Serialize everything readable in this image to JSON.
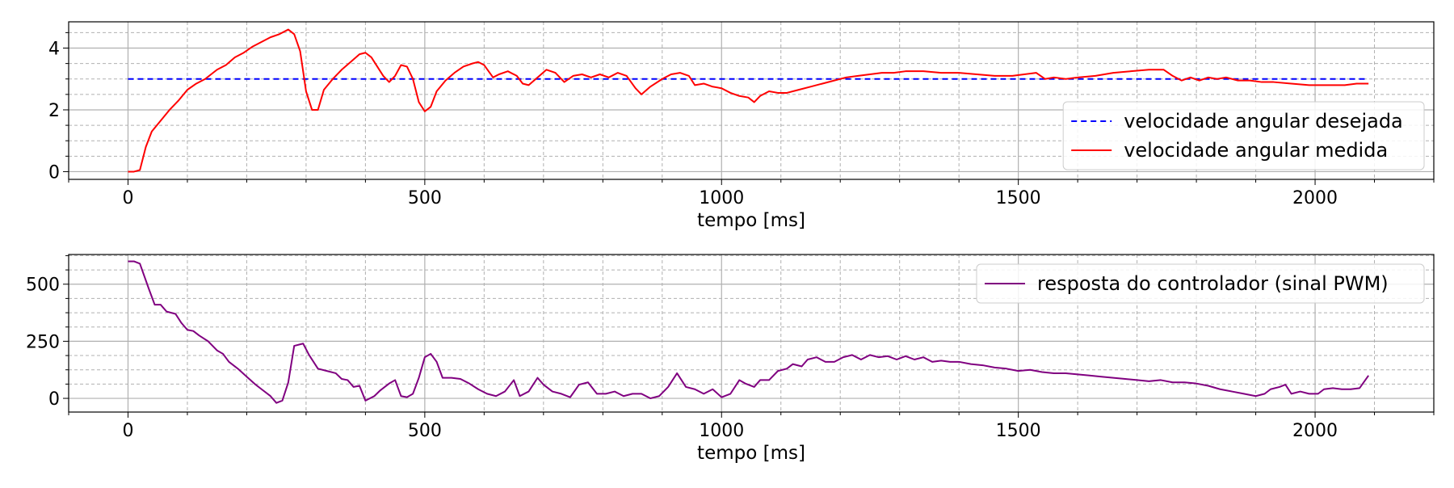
{
  "chart_data": [
    {
      "type": "line",
      "title": "",
      "xlabel": "tempo [ms]",
      "ylabel": "",
      "xlim": [
        -100,
        2200
      ],
      "ylim": [
        -0.25,
        4.85
      ],
      "xticks": [
        0,
        500,
        1000,
        1500,
        2000
      ],
      "yticks": [
        0,
        2,
        4
      ],
      "grid": true,
      "legend_position": "lower-right",
      "series": [
        {
          "name": "velocidade angular desejada",
          "color": "#0000ff",
          "style": "dashed",
          "points": [
            [
              0,
              3.0
            ],
            [
              2090,
              3.0
            ]
          ]
        },
        {
          "name": "velocidade angular medida",
          "color": "#ff0000",
          "style": "solid",
          "points": [
            [
              0,
              0
            ],
            [
              10,
              0
            ],
            [
              20,
              0.05
            ],
            [
              30,
              0.8
            ],
            [
              40,
              1.3
            ],
            [
              55,
              1.65
            ],
            [
              70,
              2.0
            ],
            [
              85,
              2.3
            ],
            [
              100,
              2.65
            ],
            [
              115,
              2.85
            ],
            [
              130,
              3.0
            ],
            [
              150,
              3.3
            ],
            [
              165,
              3.45
            ],
            [
              180,
              3.7
            ],
            [
              195,
              3.85
            ],
            [
              210,
              4.05
            ],
            [
              225,
              4.2
            ],
            [
              240,
              4.35
            ],
            [
              255,
              4.45
            ],
            [
              270,
              4.6
            ],
            [
              280,
              4.45
            ],
            [
              290,
              3.9
            ],
            [
              300,
              2.6
            ],
            [
              310,
              2.0
            ],
            [
              320,
              2.0
            ],
            [
              330,
              2.65
            ],
            [
              345,
              3.0
            ],
            [
              360,
              3.3
            ],
            [
              375,
              3.55
            ],
            [
              390,
              3.8
            ],
            [
              400,
              3.85
            ],
            [
              410,
              3.7
            ],
            [
              420,
              3.4
            ],
            [
              430,
              3.1
            ],
            [
              440,
              2.9
            ],
            [
              450,
              3.1
            ],
            [
              460,
              3.45
            ],
            [
              470,
              3.4
            ],
            [
              480,
              3.0
            ],
            [
              490,
              2.25
            ],
            [
              500,
              1.95
            ],
            [
              510,
              2.1
            ],
            [
              520,
              2.6
            ],
            [
              535,
              2.95
            ],
            [
              550,
              3.2
            ],
            [
              565,
              3.4
            ],
            [
              580,
              3.5
            ],
            [
              590,
              3.55
            ],
            [
              600,
              3.45
            ],
            [
              615,
              3.05
            ],
            [
              625,
              3.15
            ],
            [
              640,
              3.25
            ],
            [
              655,
              3.1
            ],
            [
              665,
              2.85
            ],
            [
              675,
              2.8
            ],
            [
              690,
              3.05
            ],
            [
              705,
              3.3
            ],
            [
              720,
              3.2
            ],
            [
              735,
              2.9
            ],
            [
              750,
              3.1
            ],
            [
              765,
              3.15
            ],
            [
              780,
              3.05
            ],
            [
              795,
              3.15
            ],
            [
              810,
              3.05
            ],
            [
              825,
              3.2
            ],
            [
              840,
              3.1
            ],
            [
              855,
              2.7
            ],
            [
              865,
              2.5
            ],
            [
              880,
              2.75
            ],
            [
              900,
              3.0
            ],
            [
              915,
              3.15
            ],
            [
              930,
              3.2
            ],
            [
              945,
              3.1
            ],
            [
              955,
              2.8
            ],
            [
              970,
              2.85
            ],
            [
              985,
              2.75
            ],
            [
              1000,
              2.7
            ],
            [
              1015,
              2.55
            ],
            [
              1030,
              2.45
            ],
            [
              1045,
              2.4
            ],
            [
              1055,
              2.25
            ],
            [
              1065,
              2.45
            ],
            [
              1080,
              2.6
            ],
            [
              1095,
              2.55
            ],
            [
              1110,
              2.55
            ],
            [
              1130,
              2.65
            ],
            [
              1150,
              2.75
            ],
            [
              1170,
              2.85
            ],
            [
              1190,
              2.95
            ],
            [
              1210,
              3.05
            ],
            [
              1230,
              3.1
            ],
            [
              1250,
              3.15
            ],
            [
              1270,
              3.2
            ],
            [
              1290,
              3.2
            ],
            [
              1310,
              3.25
            ],
            [
              1340,
              3.25
            ],
            [
              1370,
              3.2
            ],
            [
              1400,
              3.2
            ],
            [
              1430,
              3.15
            ],
            [
              1460,
              3.1
            ],
            [
              1490,
              3.1
            ],
            [
              1510,
              3.15
            ],
            [
              1530,
              3.2
            ],
            [
              1545,
              3.0
            ],
            [
              1560,
              3.05
            ],
            [
              1580,
              3.0
            ],
            [
              1600,
              3.05
            ],
            [
              1630,
              3.1
            ],
            [
              1660,
              3.2
            ],
            [
              1690,
              3.25
            ],
            [
              1720,
              3.3
            ],
            [
              1745,
              3.3
            ],
            [
              1760,
              3.1
            ],
            [
              1775,
              2.95
            ],
            [
              1790,
              3.05
            ],
            [
              1805,
              2.95
            ],
            [
              1820,
              3.05
            ],
            [
              1835,
              3.0
            ],
            [
              1850,
              3.05
            ],
            [
              1870,
              2.95
            ],
            [
              1890,
              2.95
            ],
            [
              1910,
              2.9
            ],
            [
              1930,
              2.9
            ],
            [
              1960,
              2.85
            ],
            [
              1990,
              2.8
            ],
            [
              2020,
              2.8
            ],
            [
              2050,
              2.8
            ],
            [
              2070,
              2.85
            ],
            [
              2090,
              2.85
            ]
          ]
        }
      ]
    },
    {
      "type": "line",
      "title": "",
      "xlabel": "tempo [ms]",
      "ylabel": "",
      "xlim": [
        -100,
        2200
      ],
      "ylim": [
        -60,
        630
      ],
      "xticks": [
        0,
        500,
        1000,
        1500,
        2000
      ],
      "yticks": [
        0,
        250,
        500
      ],
      "grid": true,
      "legend_position": "upper-right",
      "series": [
        {
          "name": "resposta do controlador (sinal PWM)",
          "color": "#800080",
          "style": "solid",
          "points": [
            [
              0,
              600
            ],
            [
              10,
              600
            ],
            [
              20,
              590
            ],
            [
              35,
              480
            ],
            [
              45,
              410
            ],
            [
              55,
              410
            ],
            [
              65,
              380
            ],
            [
              80,
              370
            ],
            [
              90,
              330
            ],
            [
              100,
              300
            ],
            [
              110,
              295
            ],
            [
              120,
              275
            ],
            [
              135,
              250
            ],
            [
              150,
              210
            ],
            [
              160,
              195
            ],
            [
              170,
              160
            ],
            [
              185,
              130
            ],
            [
              200,
              95
            ],
            [
              215,
              60
            ],
            [
              225,
              40
            ],
            [
              240,
              10
            ],
            [
              250,
              -20
            ],
            [
              260,
              -10
            ],
            [
              270,
              70
            ],
            [
              280,
              230
            ],
            [
              295,
              240
            ],
            [
              305,
              190
            ],
            [
              320,
              130
            ],
            [
              335,
              120
            ],
            [
              350,
              110
            ],
            [
              360,
              85
            ],
            [
              370,
              80
            ],
            [
              380,
              50
            ],
            [
              390,
              55
            ],
            [
              400,
              -10
            ],
            [
              415,
              10
            ],
            [
              425,
              35
            ],
            [
              440,
              65
            ],
            [
              450,
              80
            ],
            [
              460,
              10
            ],
            [
              470,
              5
            ],
            [
              480,
              20
            ],
            [
              490,
              90
            ],
            [
              500,
              180
            ],
            [
              510,
              195
            ],
            [
              520,
              160
            ],
            [
              530,
              90
            ],
            [
              545,
              90
            ],
            [
              560,
              85
            ],
            [
              575,
              65
            ],
            [
              590,
              40
            ],
            [
              605,
              20
            ],
            [
              620,
              10
            ],
            [
              635,
              30
            ],
            [
              650,
              80
            ],
            [
              660,
              10
            ],
            [
              675,
              30
            ],
            [
              690,
              90
            ],
            [
              700,
              60
            ],
            [
              715,
              30
            ],
            [
              730,
              20
            ],
            [
              745,
              5
            ],
            [
              760,
              60
            ],
            [
              775,
              70
            ],
            [
              790,
              20
            ],
            [
              805,
              20
            ],
            [
              820,
              30
            ],
            [
              835,
              10
            ],
            [
              850,
              20
            ],
            [
              865,
              20
            ],
            [
              880,
              0
            ],
            [
              895,
              10
            ],
            [
              910,
              50
            ],
            [
              925,
              110
            ],
            [
              940,
              50
            ],
            [
              955,
              40
            ],
            [
              970,
              20
            ],
            [
              985,
              40
            ],
            [
              1000,
              5
            ],
            [
              1015,
              20
            ],
            [
              1030,
              80
            ],
            [
              1040,
              65
            ],
            [
              1055,
              50
            ],
            [
              1065,
              80
            ],
            [
              1080,
              80
            ],
            [
              1095,
              120
            ],
            [
              1110,
              130
            ],
            [
              1120,
              150
            ],
            [
              1135,
              140
            ],
            [
              1145,
              170
            ],
            [
              1160,
              180
            ],
            [
              1175,
              160
            ],
            [
              1190,
              160
            ],
            [
              1205,
              180
            ],
            [
              1220,
              190
            ],
            [
              1235,
              170
            ],
            [
              1250,
              190
            ],
            [
              1265,
              180
            ],
            [
              1280,
              185
            ],
            [
              1295,
              170
            ],
            [
              1310,
              185
            ],
            [
              1325,
              170
            ],
            [
              1340,
              180
            ],
            [
              1355,
              160
            ],
            [
              1370,
              165
            ],
            [
              1385,
              160
            ],
            [
              1400,
              160
            ],
            [
              1420,
              150
            ],
            [
              1440,
              145
            ],
            [
              1460,
              135
            ],
            [
              1480,
              130
            ],
            [
              1500,
              120
            ],
            [
              1520,
              125
            ],
            [
              1540,
              115
            ],
            [
              1560,
              110
            ],
            [
              1580,
              110
            ],
            [
              1600,
              105
            ],
            [
              1620,
              100
            ],
            [
              1640,
              95
            ],
            [
              1660,
              90
            ],
            [
              1680,
              85
            ],
            [
              1700,
              80
            ],
            [
              1720,
              75
            ],
            [
              1740,
              80
            ],
            [
              1760,
              70
            ],
            [
              1780,
              70
            ],
            [
              1800,
              65
            ],
            [
              1820,
              55
            ],
            [
              1840,
              40
            ],
            [
              1860,
              30
            ],
            [
              1880,
              20
            ],
            [
              1900,
              10
            ],
            [
              1915,
              20
            ],
            [
              1925,
              40
            ],
            [
              1940,
              50
            ],
            [
              1950,
              60
            ],
            [
              1960,
              20
            ],
            [
              1975,
              30
            ],
            [
              1990,
              20
            ],
            [
              2005,
              20
            ],
            [
              2015,
              40
            ],
            [
              2030,
              45
            ],
            [
              2045,
              40
            ],
            [
              2060,
              40
            ],
            [
              2075,
              45
            ],
            [
              2090,
              100
            ]
          ]
        }
      ]
    }
  ]
}
